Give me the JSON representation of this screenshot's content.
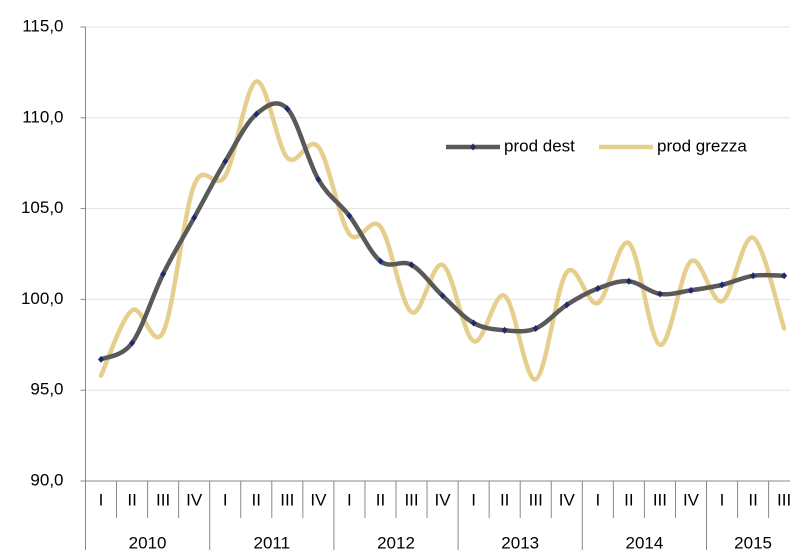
{
  "chart_data": {
    "type": "line",
    "categories": [
      "I",
      "II",
      "III",
      "IV",
      "I",
      "II",
      "III",
      "IV",
      "I",
      "II",
      "III",
      "IV",
      "I",
      "II",
      "III",
      "IV",
      "I",
      "II",
      "III",
      "IV",
      "I",
      "II",
      "III"
    ],
    "groups": [
      "2010",
      "2011",
      "2012",
      "2013",
      "2014",
      "2015"
    ],
    "series": [
      {
        "name": "prod dest",
        "color": "#595959",
        "marker_color": "#1f2a6e",
        "values": [
          96.7,
          97.6,
          101.4,
          104.5,
          107.6,
          110.2,
          110.5,
          106.6,
          104.6,
          102.1,
          101.9,
          100.2,
          98.7,
          98.3,
          98.4,
          99.7,
          100.6,
          101.0,
          100.3,
          100.5,
          100.8,
          101.3,
          101.3
        ]
      },
      {
        "name": "prod grezza",
        "color": "#e6cf8c",
        "values": [
          95.8,
          99.4,
          98.2,
          106.3,
          106.8,
          112.0,
          107.8,
          108.4,
          103.6,
          104.0,
          99.3,
          101.9,
          97.7,
          100.2,
          95.6,
          101.5,
          99.8,
          103.1,
          97.5,
          102.1,
          99.9,
          103.4,
          98.4
        ]
      }
    ],
    "ylim": [
      90,
      115
    ],
    "yticks": [
      {
        "value": 90,
        "label": "90,0"
      },
      {
        "value": 95,
        "label": "95,0"
      },
      {
        "value": 100,
        "label": "100,0"
      },
      {
        "value": 105,
        "label": "105,0"
      },
      {
        "value": 110,
        "label": "110,0"
      },
      {
        "value": 115,
        "label": "115,0"
      }
    ],
    "grid": true
  }
}
